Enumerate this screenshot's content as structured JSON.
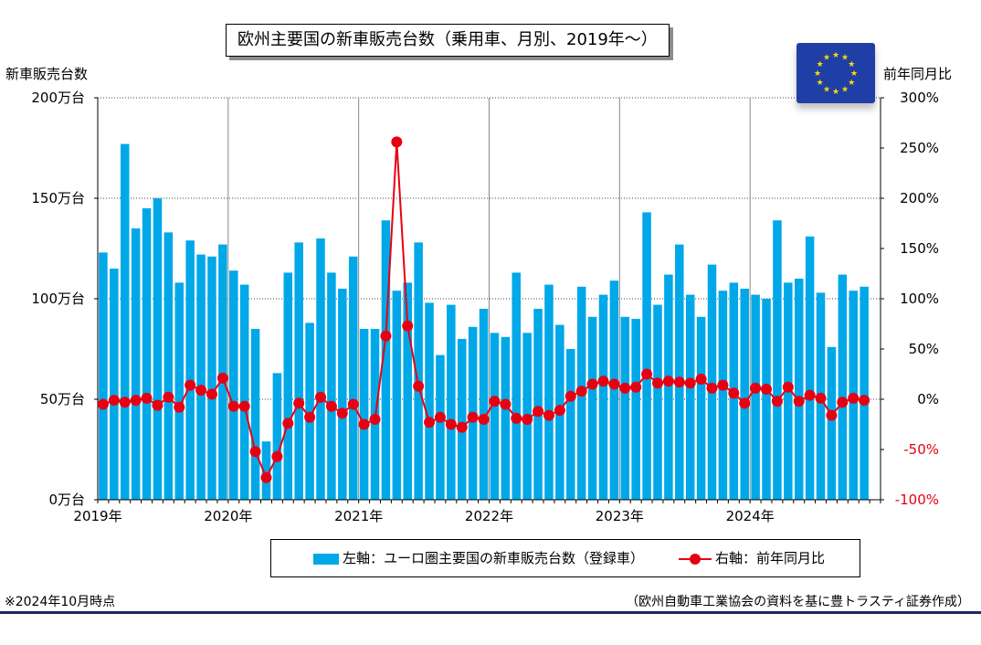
{
  "title": "欧州主要国の新車販売台数（乗用車、月別、2019年～）",
  "left_axis_title": "新車販売台数",
  "right_axis_title": "前年同月比",
  "legend": {
    "bar_label": "左軸：ユーロ圏主要国の新車販売台数（登録車）",
    "line_label": "右軸：前年同月比"
  },
  "note_left": "※2024年10月時点",
  "note_right": "（欧州自動車工業協会の資料を基に豊トラスティ証券作成）",
  "flag_icon": "eu-flag-icon",
  "colors": {
    "bar": "#00a8e8",
    "line": "#e60012",
    "frame": "#000000"
  },
  "chart_data": {
    "type": "bar+line",
    "left_axis": {
      "min": 0,
      "max": 200,
      "ticks": [
        0,
        50,
        100,
        150,
        200
      ],
      "tick_labels": [
        "0万台",
        "50万台",
        "100万台",
        "150万台",
        "200万台"
      ]
    },
    "right_axis": {
      "min": -100,
      "max": 300,
      "ticks": [
        -100,
        -50,
        0,
        50,
        100,
        150,
        200,
        250,
        300
      ],
      "tick_labels": [
        "-100%",
        "-50%",
        "0%",
        "50%",
        "100%",
        "150%",
        "200%",
        "250%",
        "300%"
      ]
    },
    "x_labels": [
      "2019年",
      "2020年",
      "2021年",
      "2022年",
      "2023年",
      "2024年"
    ],
    "grid": true,
    "series": [
      {
        "name": "左軸：ユーロ圏主要国の新車販売台数（登録車）",
        "type": "bar",
        "axis": "left",
        "unit": "万台",
        "values": [
          123,
          115,
          177,
          135,
          145,
          150,
          133,
          108,
          129,
          122,
          121,
          127,
          114,
          107,
          85,
          29,
          63,
          113,
          128,
          88,
          130,
          113,
          105,
          121,
          85,
          85,
          139,
          104,
          108,
          128,
          98,
          72,
          97,
          80,
          86,
          95,
          83,
          81,
          113,
          83,
          95,
          107,
          87,
          75,
          106,
          91,
          102,
          109,
          91,
          90,
          143,
          97,
          112,
          127,
          102,
          91,
          117,
          104,
          108,
          105,
          102,
          100,
          139,
          108,
          110,
          131,
          103,
          76,
          112,
          104,
          106
        ]
      },
      {
        "name": "右軸：前年同月比",
        "type": "line",
        "axis": "right",
        "unit": "%",
        "values": [
          -5,
          -1,
          -3,
          -1,
          1,
          -6,
          2,
          -8,
          14,
          9,
          5,
          21,
          -7,
          -7,
          -52,
          -78,
          -57,
          -24,
          -4,
          -18,
          2,
          -7,
          -14,
          -5,
          -25,
          -20,
          63,
          256,
          73,
          13,
          -23,
          -18,
          -25,
          -28,
          -18,
          -20,
          -2,
          -5,
          -19,
          -20,
          -12,
          -16,
          -11,
          3,
          8,
          15,
          18,
          15,
          11,
          12,
          25,
          16,
          18,
          17,
          16,
          20,
          11,
          14,
          6,
          -4,
          11,
          10,
          -2,
          12,
          -2,
          4,
          1,
          -16,
          -3,
          1,
          -1
        ]
      }
    ]
  }
}
